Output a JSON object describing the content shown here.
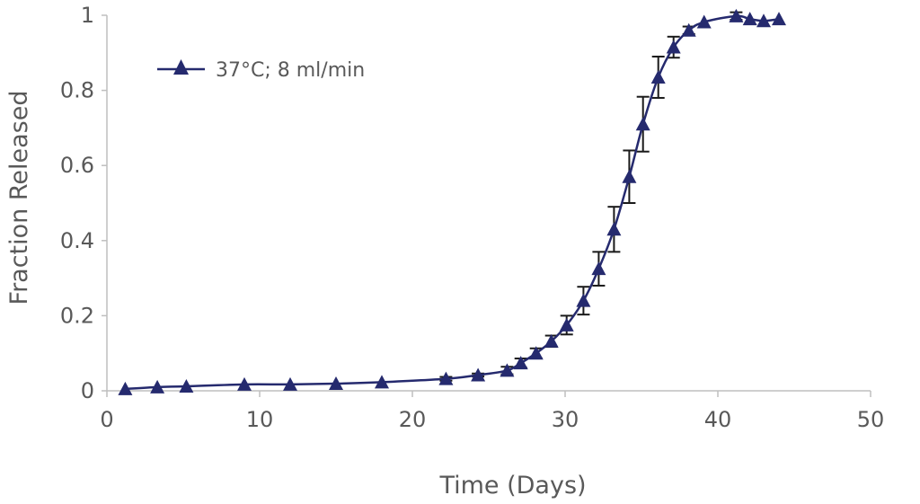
{
  "chart_data": {
    "type": "line",
    "xlabel": "Time (Days)",
    "ylabel": "Fraction Released",
    "xlim": [
      0,
      50
    ],
    "ylim": [
      0,
      1
    ],
    "x_ticks": [
      0,
      10,
      20,
      30,
      40,
      50
    ],
    "y_ticks": [
      0,
      0.2,
      0.4,
      0.6,
      0.8,
      1
    ],
    "y_tick_labels": [
      "0",
      "0.2",
      "0.4",
      "0.6",
      "0.8",
      "1"
    ],
    "grid": false,
    "legend_position": "top-left",
    "series": [
      {
        "name": "37°C; 8 ml/min",
        "color": "#252a6e",
        "marker": "triangle",
        "points": [
          {
            "x": 1.2,
            "y": 0.005,
            "err": 0.0
          },
          {
            "x": 3.3,
            "y": 0.01,
            "err": 0.0
          },
          {
            "x": 5.2,
            "y": 0.012,
            "err": 0.0
          },
          {
            "x": 9.0,
            "y": 0.017,
            "err": 0.0
          },
          {
            "x": 12.0,
            "y": 0.017,
            "err": 0.0
          },
          {
            "x": 15.0,
            "y": 0.019,
            "err": 0.0
          },
          {
            "x": 18.0,
            "y": 0.023,
            "err": 0.0
          },
          {
            "x": 22.2,
            "y": 0.032,
            "err": 0.005
          },
          {
            "x": 24.3,
            "y": 0.042,
            "err": 0.004
          },
          {
            "x": 26.2,
            "y": 0.054,
            "err": 0.01
          },
          {
            "x": 27.1,
            "y": 0.074,
            "err": 0.012
          },
          {
            "x": 28.1,
            "y": 0.1,
            "err": 0.013
          },
          {
            "x": 29.1,
            "y": 0.132,
            "err": 0.015
          },
          {
            "x": 30.1,
            "y": 0.175,
            "err": 0.025
          },
          {
            "x": 31.2,
            "y": 0.24,
            "err": 0.037
          },
          {
            "x": 32.2,
            "y": 0.325,
            "err": 0.045
          },
          {
            "x": 33.2,
            "y": 0.43,
            "err": 0.06
          },
          {
            "x": 34.2,
            "y": 0.57,
            "err": 0.07
          },
          {
            "x": 35.1,
            "y": 0.71,
            "err": 0.073
          },
          {
            "x": 36.1,
            "y": 0.835,
            "err": 0.055
          },
          {
            "x": 37.1,
            "y": 0.915,
            "err": 0.028
          },
          {
            "x": 38.1,
            "y": 0.96,
            "err": 0.01
          },
          {
            "x": 39.1,
            "y": 0.982,
            "err": 0.0
          },
          {
            "x": 41.2,
            "y": 0.998,
            "err": 0.01
          },
          {
            "x": 42.1,
            "y": 0.99,
            "err": 0.0
          },
          {
            "x": 43.0,
            "y": 0.985,
            "err": 0.0
          },
          {
            "x": 44.0,
            "y": 0.99,
            "err": 0.0
          }
        ]
      }
    ]
  }
}
